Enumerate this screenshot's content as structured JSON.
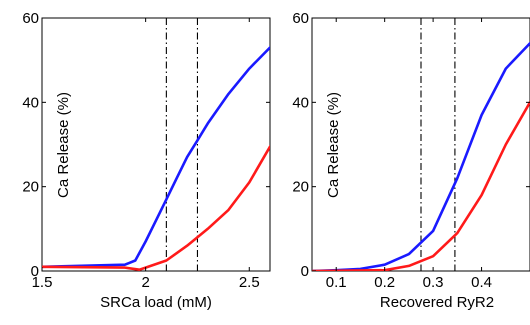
{
  "chart_data": [
    {
      "type": "line",
      "xlabel": "SRCa load (mM)",
      "ylabel": "Ca Release (%)",
      "xlim": [
        1.5,
        2.6
      ],
      "ylim": [
        0,
        60
      ],
      "xticks": [
        1.5,
        2,
        2.5
      ],
      "xtick_labels": [
        "1.5",
        "2",
        "2.5"
      ],
      "yticks": [
        0,
        20,
        40,
        60
      ],
      "ytick_labels": [
        "0",
        "20",
        "40",
        "60"
      ],
      "grid": false,
      "series": [
        {
          "color": "#1a1aff",
          "points": [
            [
              1.5,
              1.0
            ],
            [
              1.9,
              1.5
            ],
            [
              1.95,
              2.5
            ],
            [
              2.0,
              7
            ],
            [
              2.05,
              12
            ],
            [
              2.1,
              17
            ],
            [
              2.15,
              22
            ],
            [
              2.2,
              27
            ],
            [
              2.25,
              31
            ],
            [
              2.3,
              35
            ],
            [
              2.4,
              42
            ],
            [
              2.5,
              48
            ],
            [
              2.6,
              53
            ]
          ]
        },
        {
          "color": "#ff1a1a",
          "points": [
            [
              1.5,
              1.0
            ],
            [
              1.9,
              0.8
            ],
            [
              1.97,
              0.3
            ],
            [
              2.0,
              0.8
            ],
            [
              2.1,
              2.5
            ],
            [
              2.2,
              6
            ],
            [
              2.3,
              10
            ],
            [
              2.4,
              14.5
            ],
            [
              2.5,
              21
            ],
            [
              2.6,
              29.5
            ]
          ]
        }
      ],
      "vlines": [
        {
          "x": 2.1,
          "style": "dash-dot"
        },
        {
          "x": 2.25,
          "style": "dash-dot"
        }
      ]
    },
    {
      "type": "line",
      "xlabel": "Recovered RyR2",
      "ylabel": "Ca Release (%)",
      "xlim": [
        0.05,
        0.5
      ],
      "ylim": [
        0,
        60
      ],
      "xticks": [
        0.1,
        0.2,
        0.3,
        0.4
      ],
      "xtick_labels": [
        "0.1",
        "0.2",
        "0.3",
        "0.4"
      ],
      "yticks": [
        0,
        20,
        40,
        60
      ],
      "ytick_labels": [
        "0",
        "20",
        "40",
        "60"
      ],
      "grid": false,
      "series": [
        {
          "color": "#1a1aff",
          "points": [
            [
              0.05,
              0.0
            ],
            [
              0.1,
              0.2
            ],
            [
              0.15,
              0.5
            ],
            [
              0.2,
              1.5
            ],
            [
              0.25,
              4
            ],
            [
              0.3,
              9.5
            ],
            [
              0.35,
              22
            ],
            [
              0.4,
              37
            ],
            [
              0.45,
              48
            ],
            [
              0.5,
              54
            ]
          ]
        },
        {
          "color": "#ff1a1a",
          "points": [
            [
              0.05,
              0.0
            ],
            [
              0.2,
              0.2
            ],
            [
              0.25,
              1.2
            ],
            [
              0.3,
              3.5
            ],
            [
              0.35,
              9
            ],
            [
              0.4,
              18
            ],
            [
              0.45,
              30
            ],
            [
              0.5,
              40
            ]
          ]
        }
      ],
      "vlines": [
        {
          "x": 0.275,
          "style": "dash-dot"
        },
        {
          "x": 0.345,
          "style": "dash-dot"
        }
      ]
    }
  ]
}
